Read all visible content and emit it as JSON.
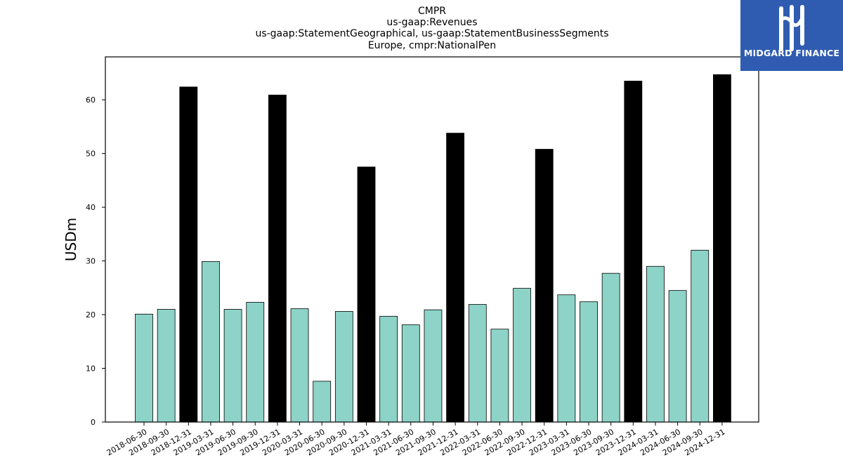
{
  "chart_data": {
    "type": "bar",
    "title_lines": [
      "CMPR",
      "us-gaap:Revenues",
      "us-gaap:StatementGeographical, us-gaap:StatementBusinessSegments",
      "Europe, cmpr:NationalPen"
    ],
    "xlabel": "",
    "ylabel": "USDm",
    "ylim": [
      0,
      68
    ],
    "yticks": [
      0,
      10,
      20,
      30,
      40,
      50,
      60
    ],
    "grid": false,
    "categories": [
      "2018-06-30",
      "2018-09-30",
      "2018-12-31",
      "2019-03-31",
      "2019-06-30",
      "2019-09-30",
      "2019-12-31",
      "2020-03-31",
      "2020-06-30",
      "2020-09-30",
      "2020-12-31",
      "2021-03-31",
      "2021-06-30",
      "2021-09-30",
      "2021-12-31",
      "2022-03-31",
      "2022-06-30",
      "2022-09-30",
      "2022-12-31",
      "2023-03-31",
      "2023-06-30",
      "2023-09-30",
      "2023-12-31",
      "2024-03-31",
      "2024-06-30",
      "2024-09-30",
      "2024-12-31"
    ],
    "values": [
      20.1,
      21.0,
      62.4,
      29.9,
      21.0,
      22.3,
      60.9,
      21.1,
      7.6,
      20.6,
      47.5,
      19.7,
      18.1,
      20.9,
      53.8,
      21.9,
      17.3,
      24.9,
      50.8,
      23.7,
      22.4,
      27.7,
      63.5,
      29.0,
      24.5,
      32.0,
      64.7
    ],
    "colors": {
      "regular": "#8dd3c7",
      "q4": "#000000",
      "edge": "#000000"
    },
    "q4_index_every": 4,
    "q4_offset": 2
  },
  "logo": {
    "text": "MIDGARD FINANCE",
    "background": "#2f5cb0",
    "foreground": "#ffffff"
  }
}
